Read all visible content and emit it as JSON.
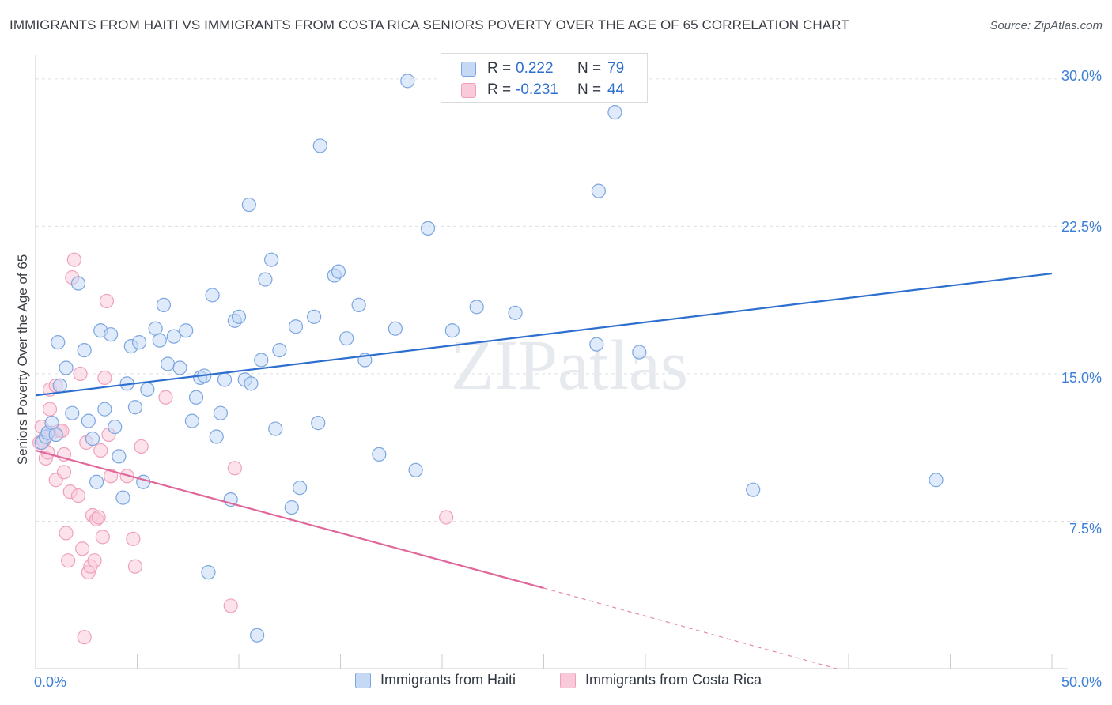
{
  "chart_data": {
    "type": "scatter",
    "title": "IMMIGRANTS FROM HAITI VS IMMIGRANTS FROM COSTA RICA SENIORS POVERTY OVER THE AGE OF 65 CORRELATION CHART",
    "source": "Source: ZipAtlas.com",
    "xlabel": "",
    "ylabel": "Seniors Poverty Over the Age of 65",
    "xlim": [
      0,
      50
    ],
    "ylim": [
      0,
      31
    ],
    "x_tick_labels": [
      "0.0%",
      "50.0%"
    ],
    "y_ticks": [
      7.5,
      15.0,
      22.5,
      30.0
    ],
    "y_tick_labels": [
      "7.5%",
      "15.0%",
      "22.5%",
      "30.0%"
    ],
    "watermark": "ZIPatlas",
    "legend": {
      "rows": [
        {
          "r_label": "R =",
          "r_value": "0.222",
          "n_label": "N =",
          "n_value": "79"
        },
        {
          "r_label": "R =",
          "r_value": "-0.231",
          "n_label": "N =",
          "n_value": "44"
        }
      ]
    },
    "series": [
      {
        "name": "Immigrants from Haiti",
        "color": "#7ba6e0",
        "fill": "#c5d9f5",
        "line_color": "#2d6fcf",
        "trend": {
          "x0": 0,
          "y0": 13.9,
          "x1": 50,
          "y1": 20.1
        },
        "points": [
          [
            0.3,
            11.5
          ],
          [
            0.5,
            11.8
          ],
          [
            0.6,
            12.0
          ],
          [
            0.8,
            12.5
          ],
          [
            1.0,
            11.9
          ],
          [
            1.1,
            16.6
          ],
          [
            1.2,
            14.4
          ],
          [
            1.5,
            15.3
          ],
          [
            1.8,
            13.0
          ],
          [
            2.1,
            19.6
          ],
          [
            2.4,
            16.2
          ],
          [
            2.6,
            12.6
          ],
          [
            2.8,
            11.7
          ],
          [
            3.0,
            9.5
          ],
          [
            3.2,
            17.2
          ],
          [
            3.4,
            13.2
          ],
          [
            3.7,
            17.0
          ],
          [
            3.9,
            12.3
          ],
          [
            4.1,
            10.8
          ],
          [
            4.3,
            8.7
          ],
          [
            4.5,
            14.5
          ],
          [
            4.7,
            16.4
          ],
          [
            4.9,
            13.3
          ],
          [
            5.1,
            16.6
          ],
          [
            5.3,
            9.5
          ],
          [
            5.5,
            14.2
          ],
          [
            5.9,
            17.3
          ],
          [
            6.1,
            16.7
          ],
          [
            6.3,
            18.5
          ],
          [
            6.5,
            15.5
          ],
          [
            6.8,
            16.9
          ],
          [
            7.1,
            15.3
          ],
          [
            7.4,
            17.2
          ],
          [
            7.7,
            12.6
          ],
          [
            7.9,
            13.8
          ],
          [
            8.1,
            14.8
          ],
          [
            8.3,
            14.9
          ],
          [
            8.5,
            4.9
          ],
          [
            8.7,
            19.0
          ],
          [
            8.9,
            11.8
          ],
          [
            9.1,
            13.0
          ],
          [
            9.3,
            14.7
          ],
          [
            9.6,
            8.6
          ],
          [
            9.8,
            17.7
          ],
          [
            10.0,
            17.9
          ],
          [
            10.3,
            14.7
          ],
          [
            10.6,
            14.5
          ],
          [
            10.5,
            23.6
          ],
          [
            10.9,
            1.7
          ],
          [
            11.1,
            15.7
          ],
          [
            11.3,
            19.8
          ],
          [
            11.6,
            20.8
          ],
          [
            11.8,
            12.2
          ],
          [
            12.0,
            16.2
          ],
          [
            12.6,
            8.2
          ],
          [
            12.8,
            17.4
          ],
          [
            13.0,
            9.2
          ],
          [
            13.7,
            17.9
          ],
          [
            13.9,
            12.5
          ],
          [
            14.0,
            26.6
          ],
          [
            14.7,
            20.0
          ],
          [
            14.9,
            20.2
          ],
          [
            15.3,
            16.8
          ],
          [
            15.9,
            18.5
          ],
          [
            16.2,
            15.7
          ],
          [
            16.9,
            10.9
          ],
          [
            17.7,
            17.3
          ],
          [
            18.3,
            29.9
          ],
          [
            18.7,
            10.1
          ],
          [
            19.3,
            22.4
          ],
          [
            20.5,
            17.2
          ],
          [
            21.7,
            18.4
          ],
          [
            23.6,
            18.1
          ],
          [
            27.6,
            16.5
          ],
          [
            27.7,
            24.3
          ],
          [
            28.5,
            28.3
          ],
          [
            29.7,
            16.1
          ],
          [
            35.3,
            9.1
          ],
          [
            44.3,
            9.6
          ]
        ]
      },
      {
        "name": "Immigrants from Costa Rica",
        "color": "#f0a0bb",
        "fill": "#f9cbda",
        "line_color": "#e0679a",
        "trend": {
          "x0": 0,
          "y0": 11.1,
          "x1": 25,
          "y1": 4.1,
          "x_dash_end": 39.4,
          "y_dash_end": 0.0
        },
        "points": [
          [
            0.2,
            11.5
          ],
          [
            0.3,
            12.3
          ],
          [
            0.4,
            11.6
          ],
          [
            0.5,
            10.7
          ],
          [
            0.6,
            11.0
          ],
          [
            0.7,
            13.2
          ],
          [
            0.7,
            14.2
          ],
          [
            0.8,
            12.0
          ],
          [
            1.0,
            9.6
          ],
          [
            1.0,
            14.4
          ],
          [
            1.2,
            12.1
          ],
          [
            1.3,
            12.1
          ],
          [
            1.4,
            10.0
          ],
          [
            1.4,
            10.9
          ],
          [
            1.5,
            6.9
          ],
          [
            1.6,
            5.5
          ],
          [
            1.7,
            9.0
          ],
          [
            1.8,
            19.9
          ],
          [
            1.9,
            20.8
          ],
          [
            2.1,
            8.8
          ],
          [
            2.2,
            15.0
          ],
          [
            2.3,
            6.1
          ],
          [
            2.4,
            1.6
          ],
          [
            2.5,
            11.5
          ],
          [
            2.6,
            4.9
          ],
          [
            2.7,
            5.2
          ],
          [
            2.8,
            7.8
          ],
          [
            2.9,
            5.5
          ],
          [
            3.0,
            7.6
          ],
          [
            3.1,
            7.7
          ],
          [
            3.2,
            11.1
          ],
          [
            3.3,
            6.7
          ],
          [
            3.4,
            14.8
          ],
          [
            3.5,
            18.7
          ],
          [
            3.6,
            11.9
          ],
          [
            3.7,
            9.8
          ],
          [
            4.5,
            9.8
          ],
          [
            4.8,
            6.6
          ],
          [
            4.9,
            5.2
          ],
          [
            5.2,
            11.3
          ],
          [
            6.4,
            13.8
          ],
          [
            9.6,
            3.2
          ],
          [
            9.8,
            10.2
          ],
          [
            20.2,
            7.7
          ]
        ]
      }
    ]
  }
}
